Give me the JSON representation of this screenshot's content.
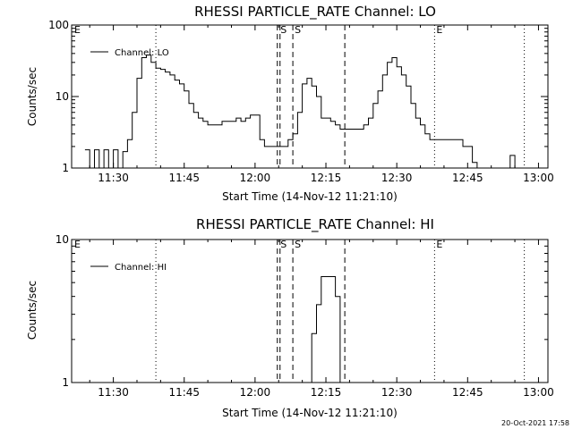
{
  "footer": {
    "timestamp": "20-Oct-2021 17:58"
  },
  "chart_data": [
    {
      "type": "line",
      "title": "RHESSI PARTICLE_RATE Channel: LO",
      "xlabel": "Start Time (14-Nov-12 11:21:10)",
      "ylabel": "Counts/sec",
      "yscale": "log",
      "xlim": [
        "11:21:10",
        "13:02:00"
      ],
      "ylim": [
        1,
        100
      ],
      "x_ticks": [
        "11:30",
        "11:45",
        "12:00",
        "12:15",
        "12:30",
        "12:45",
        "13:00"
      ],
      "y_ticks": [
        "1",
        "10",
        "100"
      ],
      "grid": false,
      "legend": {
        "position": "top-left",
        "entries": [
          "Channel: LO"
        ]
      },
      "series": [
        {
          "name": "Channel: LO",
          "x": [
            "11:24",
            "11:25",
            "11:26",
            "11:27",
            "11:28",
            "11:29",
            "11:30",
            "11:31",
            "11:32",
            "11:33",
            "11:34",
            "11:35",
            "11:36",
            "11:37",
            "11:38",
            "11:39",
            "11:40",
            "11:41",
            "11:42",
            "11:43",
            "11:44",
            "11:45",
            "11:46",
            "11:47",
            "11:48",
            "11:49",
            "11:50",
            "11:51",
            "11:52",
            "11:53",
            "11:54",
            "11:55",
            "11:56",
            "11:57",
            "11:58",
            "11:59",
            "12:00",
            "12:01",
            "12:02",
            "12:03",
            "12:04",
            "12:05",
            "12:06",
            "12:07",
            "12:08",
            "12:09",
            "12:10",
            "12:11",
            "12:12",
            "12:13",
            "12:14",
            "12:15",
            "12:16",
            "12:17",
            "12:18",
            "12:19",
            "12:20",
            "12:21",
            "12:22",
            "12:23",
            "12:24",
            "12:25",
            "12:26",
            "12:27",
            "12:28",
            "12:29",
            "12:30",
            "12:31",
            "12:32",
            "12:33",
            "12:34",
            "12:35",
            "12:36",
            "12:37",
            "12:38",
            "12:39",
            "12:40",
            "12:41",
            "12:42",
            "12:43",
            "12:44",
            "12:45",
            "12:46",
            "12:47",
            "12:48",
            "12:49",
            "12:50",
            "12:51",
            "12:52",
            "12:53",
            "12:54",
            "12:55"
          ],
          "values": [
            1.8,
            1.0,
            1.8,
            1.0,
            1.8,
            1.0,
            1.8,
            1.0,
            1.7,
            2.5,
            6,
            18,
            35,
            38,
            30,
            25,
            24,
            22,
            20,
            17,
            15,
            12,
            8,
            6,
            5,
            4.5,
            4,
            4,
            4,
            4.5,
            4.5,
            4.5,
            5,
            4.5,
            5,
            5.5,
            5.5,
            2.5,
            2,
            2,
            2,
            2,
            2,
            2.5,
            3,
            6,
            15,
            18,
            14,
            10,
            5,
            5,
            4.5,
            4,
            3.5,
            3.5,
            3.5,
            3.5,
            3.5,
            4,
            5,
            8,
            12,
            20,
            30,
            35,
            26,
            20,
            14,
            8,
            5,
            4,
            3,
            2.5,
            2.5,
            2.5,
            2.5,
            2.5,
            2.5,
            2.5,
            2,
            2,
            1.2,
            1,
            1,
            1,
            1,
            1,
            1,
            1,
            1.5,
            1
          ]
        }
      ],
      "annotations": [
        {
          "label": "E",
          "x": "11:21:10",
          "style": "label"
        },
        {
          "label": "",
          "x": "11:39",
          "style": "dotted"
        },
        {
          "label": "S",
          "x": "12:05",
          "style": "dashed-double"
        },
        {
          "label": "S",
          "x": "12:08",
          "style": "dashed"
        },
        {
          "label": "",
          "x": "12:19",
          "style": "dashed"
        },
        {
          "label": "E",
          "x": "12:38",
          "style": "dotted"
        },
        {
          "label": "",
          "x": "12:57",
          "style": "dotted"
        }
      ]
    },
    {
      "type": "line",
      "title": "RHESSI PARTICLE_RATE Channel: HI",
      "xlabel": "Start Time (14-Nov-12 11:21:10)",
      "ylabel": "Counts/sec",
      "yscale": "log",
      "xlim": [
        "11:21:10",
        "13:02:00"
      ],
      "ylim": [
        1,
        10
      ],
      "x_ticks": [
        "11:30",
        "11:45",
        "12:00",
        "12:15",
        "12:30",
        "12:45",
        "13:00"
      ],
      "y_ticks": [
        "1",
        "10"
      ],
      "grid": false,
      "legend": {
        "position": "top-left",
        "entries": [
          "Channel: HI"
        ]
      },
      "series": [
        {
          "name": "Channel: HI",
          "x": [
            "12:11",
            "12:12",
            "12:13",
            "12:14",
            "12:15",
            "12:16",
            "12:17",
            "12:18"
          ],
          "values": [
            1.0,
            2.2,
            3.5,
            5.5,
            5.5,
            5.5,
            4.0,
            1.0
          ]
        }
      ],
      "annotations": [
        {
          "label": "E",
          "x": "11:21:10",
          "style": "label"
        },
        {
          "label": "",
          "x": "11:39",
          "style": "dotted"
        },
        {
          "label": "S",
          "x": "12:05",
          "style": "dashed-double"
        },
        {
          "label": "S",
          "x": "12:08",
          "style": "dashed"
        },
        {
          "label": "",
          "x": "12:19",
          "style": "dashed"
        },
        {
          "label": "E",
          "x": "12:38",
          "style": "dotted"
        },
        {
          "label": "",
          "x": "12:57",
          "style": "dotted"
        }
      ]
    }
  ]
}
